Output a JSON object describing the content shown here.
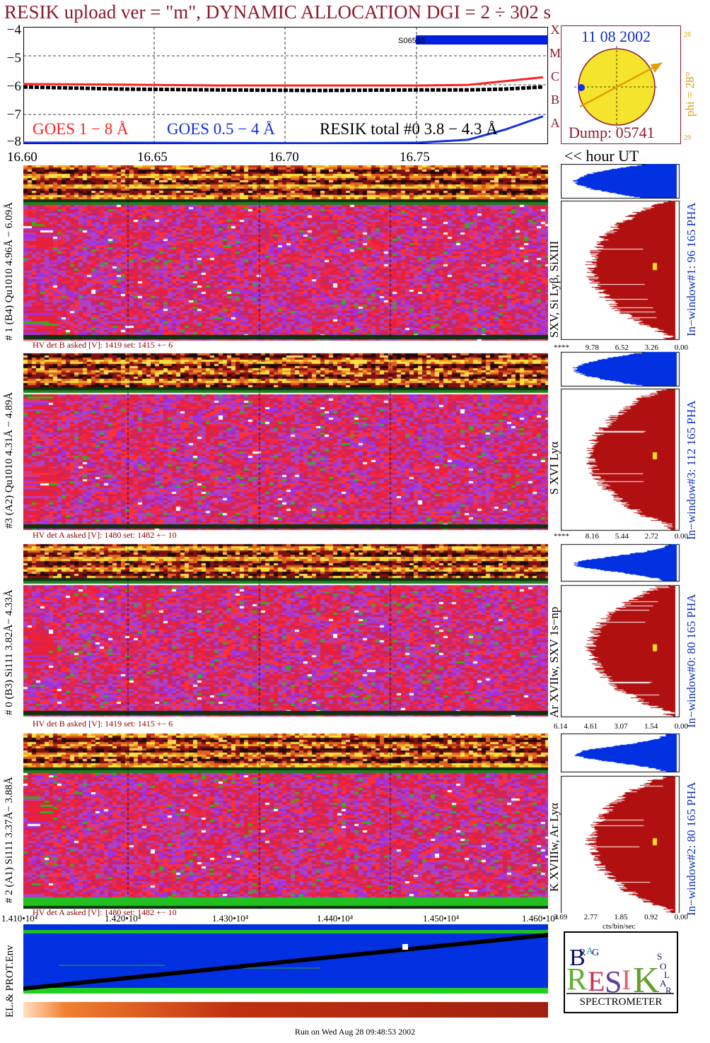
{
  "title": "RESIK upload ver = \"m\", DYNAMIC ALLOCATION  DGI =   2 ÷ 302 s",
  "goes_panel": {
    "yticks": [
      "−4",
      "−5",
      "−6",
      "−7",
      "−8"
    ],
    "legend_goes18": "GOES 1 − 8 Å",
    "legend_goes054": "GOES 0.5 − 4 Å",
    "legend_resik": "RESIK total #0  3.8 − 4.3 Å",
    "saa_label": "S06588",
    "class_letters": [
      "X",
      "M",
      "C",
      "B",
      "A"
    ],
    "colors": {
      "goes18": "#ff2020",
      "goes054": "#1030e0",
      "resik": "#000000",
      "saa": "#0020e0"
    }
  },
  "sun_panel": {
    "date": "11 08 2002",
    "phi": "phi = 28°",
    "phi_top": "28",
    "phi_bottom": "29",
    "dump": "Dump: 05741"
  },
  "time_axis": {
    "ticks": [
      "16.60",
      "16.65",
      "16.70",
      "16.75"
    ],
    "unit_label": "<< hour UT"
  },
  "detectors": [
    {
      "ylabel": "# 1 (B4) Qu1010 4.96Å − 6.09Å",
      "hv": "HV det B asked [V]:  1419 set:  1415  +−    6",
      "lines": "SXV, Si Lyβ, SiXIII",
      "window": "In−window#1:   96 165  PHA",
      "pha_ticks": [
        "****",
        "9.78",
        "6.52",
        "3.26",
        "0.00"
      ]
    },
    {
      "ylabel": "#3 (A2) Qu1010  4.31Å − 4.89Å",
      "hv": "HV det A asked [V]:  1480 set:  1482  +−    10",
      "lines": "S XVI Lyα",
      "window": "In−window#3:  112 165  PHA",
      "pha_ticks": [
        "****",
        "8.16",
        "5.44",
        "2.72",
        "0.00"
      ]
    },
    {
      "ylabel": "# 0 (B3) Si111  3.82Å− 4.33Å",
      "hv": "HV det B asked [V]:  1419 set:  1415  +−    6",
      "lines": "Ar XVIIw,  SXV 1s−np",
      "window": "In−window#0:   80 165  PHA",
      "pha_ticks": [
        "6.14",
        "4.61",
        "3.07",
        "1.54",
        "0.00"
      ]
    },
    {
      "ylabel": "# 2 (A1) Si111  3.37Å− 3.88Å",
      "hv": "HV det A asked [V]:  1480 set:  1482  +−    10",
      "lines": "K XVIIIw,  Ar Lyα",
      "window": "In−window#2:   80 165  PHA",
      "pha_ticks": [
        "3.69",
        "2.77",
        "1.85",
        "0.92",
        "0.00"
      ]
    }
  ],
  "pha_unit": "cts/bin/sec",
  "bottom_axis": {
    "ticks": [
      "1.410•10⁴",
      "1.420•10⁴",
      "1.430•10⁴",
      "1.440•10⁴",
      "1.450•10⁴",
      "1.460•10⁴"
    ]
  },
  "env_label": "EL.& PROT.Env",
  "logo": {
    "letters": [
      "B",
      "R",
      "A",
      "G",
      "R",
      "E",
      "S",
      "I",
      "K",
      "S",
      "O",
      "L",
      "A",
      "R"
    ],
    "caption": "SPECTROMETER"
  },
  "footer": "Run on Wed Aug 28 09:48:53 2002",
  "chart_data": [
    {
      "type": "line",
      "title": "",
      "xlabel": "hour UT",
      "ylabel": "",
      "xlim": [
        16.582,
        16.792
      ],
      "ylim": [
        -8,
        -4
      ],
      "series": [
        {
          "name": "GOES 1 − 8 Å",
          "x": [
            16.582,
            16.62,
            16.66,
            16.7,
            16.74,
            16.76,
            16.775,
            16.79
          ],
          "values": [
            -5.95,
            -5.97,
            -6.0,
            -6.0,
            -6.0,
            -5.98,
            -5.85,
            -5.72
          ]
        },
        {
          "name": "GOES 0.5 − 4 Å",
          "x": [
            16.582,
            16.62,
            16.66,
            16.7,
            16.74,
            16.76,
            16.775,
            16.79
          ],
          "values": [
            -7.95,
            -7.95,
            -7.96,
            -7.97,
            -7.95,
            -7.85,
            -7.5,
            -7.05
          ]
        },
        {
          "name": "RESIK total #0  3.8 − 4.3 Å",
          "x": [
            16.582,
            16.62,
            16.66,
            16.7,
            16.74,
            16.76,
            16.775,
            16.79
          ],
          "values": [
            -6.05,
            -6.12,
            -6.15,
            -6.17,
            -6.15,
            -6.15,
            -6.12,
            -6.05
          ]
        }
      ]
    }
  ]
}
